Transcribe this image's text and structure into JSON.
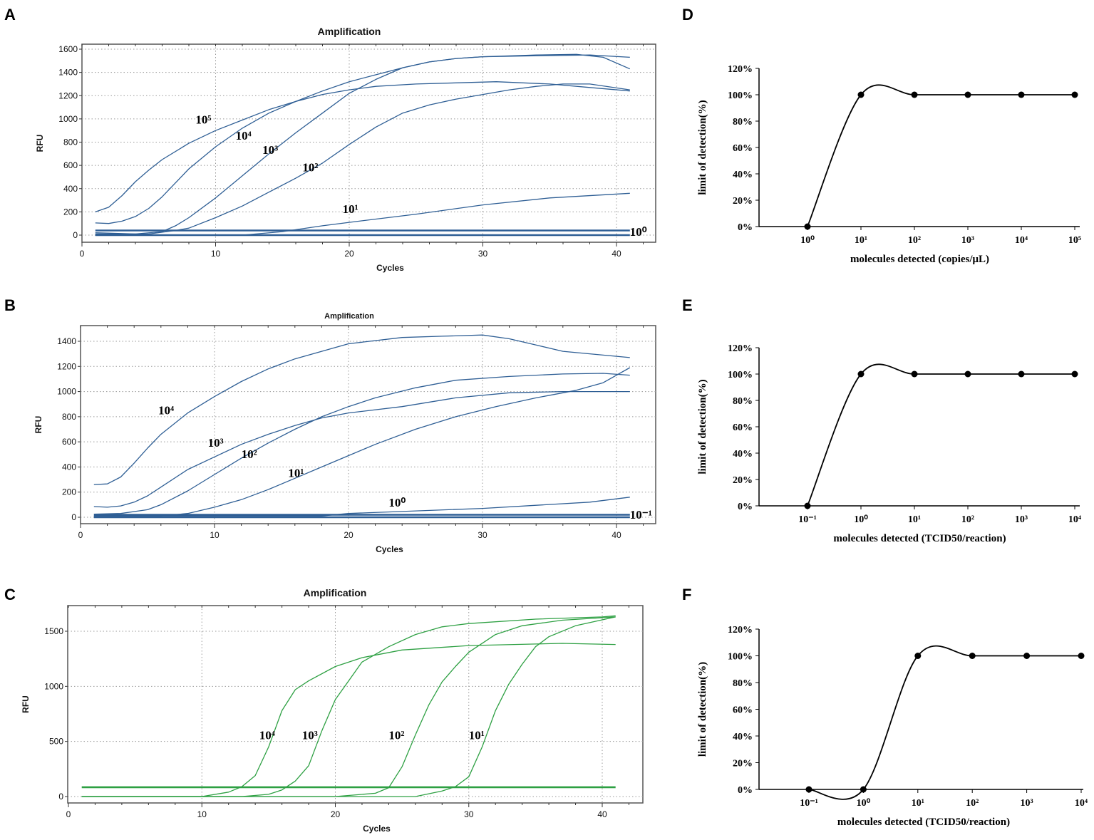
{
  "panel_letters": [
    "A",
    "B",
    "C",
    "D",
    "E",
    "F"
  ],
  "chart_data": [
    {
      "id": "A",
      "type": "line",
      "title": "Amplification",
      "xlabel": "Cycles",
      "ylabel": "RFU",
      "xlim": [
        0,
        43
      ],
      "ylim": [
        -60,
        1650
      ],
      "xticks": [
        0,
        10,
        20,
        30,
        40
      ],
      "yticks": [
        0,
        200,
        400,
        600,
        800,
        1000,
        1200,
        1400,
        1600
      ],
      "grid": true,
      "color": "#2f5f95",
      "series": [
        {
          "name": "10⁵",
          "x": [
            1,
            2,
            3,
            4,
            5,
            6,
            8,
            10,
            12,
            14,
            16,
            18,
            20,
            22,
            25,
            28,
            31,
            35,
            38,
            41
          ],
          "y": [
            200,
            240,
            340,
            460,
            560,
            650,
            790,
            900,
            990,
            1080,
            1150,
            1210,
            1250,
            1280,
            1300,
            1310,
            1320,
            1300,
            1270,
            1240
          ]
        },
        {
          "name": "10⁴",
          "x": [
            1,
            2,
            3,
            4,
            5,
            6,
            7,
            8,
            10,
            12,
            14,
            16,
            18,
            20,
            22,
            24,
            26,
            28,
            30,
            34,
            37,
            39,
            41
          ],
          "y": [
            105,
            100,
            120,
            160,
            230,
            330,
            450,
            570,
            760,
            920,
            1050,
            1150,
            1240,
            1320,
            1380,
            1440,
            1490,
            1520,
            1535,
            1550,
            1555,
            1530,
            1430
          ]
        },
        {
          "name": "10³",
          "x": [
            1,
            4,
            6,
            7,
            8,
            10,
            12,
            14,
            16,
            18,
            20,
            22,
            24,
            26,
            28,
            30,
            35,
            38,
            41
          ],
          "y": [
            20,
            10,
            30,
            80,
            150,
            320,
            510,
            700,
            880,
            1050,
            1220,
            1340,
            1440,
            1490,
            1520,
            1535,
            1545,
            1550,
            1530
          ]
        },
        {
          "name": "10²",
          "x": [
            1,
            5,
            7,
            8,
            10,
            12,
            14,
            16,
            18,
            20,
            22,
            24,
            26,
            28,
            30,
            32,
            34,
            36,
            38,
            41
          ],
          "y": [
            10,
            10,
            40,
            60,
            150,
            250,
            370,
            490,
            620,
            780,
            930,
            1050,
            1120,
            1170,
            1210,
            1250,
            1280,
            1300,
            1300,
            1250
          ]
        },
        {
          "name": "10¹",
          "x": [
            1,
            12,
            15,
            18,
            20,
            25,
            30,
            35,
            41
          ],
          "y": [
            0,
            0,
            30,
            80,
            110,
            180,
            260,
            320,
            360
          ]
        },
        {
          "name": "10⁰",
          "x": [
            1,
            41
          ],
          "y": [
            40,
            40
          ]
        },
        {
          "name": "",
          "x": [
            1,
            41
          ],
          "y": [
            0,
            0
          ]
        }
      ]
    },
    {
      "id": "B",
      "type": "line",
      "title": "Amplification",
      "xlabel": "Cycles",
      "ylabel": "RFU",
      "xlim": [
        0,
        43
      ],
      "ylim": [
        -50,
        1520
      ],
      "xticks": [
        0,
        10,
        20,
        30,
        40
      ],
      "yticks": [
        0,
        200,
        400,
        600,
        800,
        1000,
        1200,
        1400
      ],
      "grid": true,
      "color": "#2f5f95",
      "series": [
        {
          "name": "10⁴",
          "x": [
            1,
            2,
            3,
            4,
            5,
            6,
            8,
            10,
            12,
            14,
            16,
            18,
            20,
            24,
            27,
            30,
            32,
            34,
            36,
            38,
            41
          ],
          "y": [
            260,
            265,
            320,
            430,
            550,
            660,
            830,
            960,
            1080,
            1180,
            1260,
            1320,
            1380,
            1430,
            1440,
            1450,
            1420,
            1370,
            1320,
            1300,
            1270
          ]
        },
        {
          "name": "10³",
          "x": [
            1,
            2,
            3,
            4,
            5,
            6,
            8,
            10,
            12,
            14,
            16,
            18,
            20,
            24,
            28,
            32,
            36,
            41
          ],
          "y": [
            85,
            80,
            90,
            120,
            170,
            240,
            380,
            480,
            580,
            660,
            730,
            790,
            830,
            880,
            950,
            990,
            1000,
            1000
          ]
        },
        {
          "name": "10²",
          "x": [
            1,
            3,
            5,
            6,
            8,
            10,
            12,
            14,
            16,
            18,
            20,
            22,
            25,
            28,
            32,
            36,
            39,
            41
          ],
          "y": [
            25,
            30,
            60,
            100,
            210,
            340,
            470,
            590,
            700,
            800,
            880,
            950,
            1030,
            1090,
            1120,
            1140,
            1145,
            1130
          ]
        },
        {
          "name": "10¹",
          "x": [
            1,
            6,
            8,
            10,
            12,
            14,
            16,
            18,
            20,
            22,
            25,
            28,
            31,
            34,
            37,
            39,
            41
          ],
          "y": [
            10,
            10,
            30,
            80,
            140,
            220,
            310,
            400,
            490,
            580,
            700,
            800,
            880,
            950,
            1010,
            1070,
            1190
          ]
        },
        {
          "name": "10⁰",
          "x": [
            1,
            18,
            20,
            30,
            38,
            41
          ],
          "y": [
            10,
            10,
            30,
            70,
            120,
            160
          ]
        },
        {
          "name": "10⁻¹",
          "x": [
            1,
            41
          ],
          "y": [
            20,
            20
          ]
        },
        {
          "name": "",
          "x": [
            1,
            41
          ],
          "y": [
            0,
            0
          ]
        }
      ]
    },
    {
      "id": "C",
      "type": "line",
      "title": "Amplification",
      "xlabel": "Cycles",
      "ylabel": "RFU",
      "xlim": [
        0,
        43
      ],
      "ylim": [
        -60,
        1730
      ],
      "xticks": [
        0,
        10,
        20,
        30,
        40
      ],
      "yticks": [
        0,
        500,
        1000,
        1500
      ],
      "grid": true,
      "color": "#2ea043",
      "series": [
        {
          "name": "10⁴",
          "x": [
            1,
            10,
            12,
            13,
            14,
            15,
            16,
            17,
            18,
            20,
            22,
            25,
            30,
            37,
            41
          ],
          "y": [
            0,
            0,
            40,
            90,
            190,
            450,
            780,
            970,
            1050,
            1180,
            1260,
            1330,
            1370,
            1390,
            1380
          ]
        },
        {
          "name": "10³",
          "x": [
            1,
            13,
            15,
            16,
            17,
            18,
            19,
            20,
            21,
            22,
            24,
            26,
            28,
            30,
            35,
            40,
            41
          ],
          "y": [
            0,
            0,
            20,
            60,
            140,
            280,
            600,
            880,
            1050,
            1220,
            1360,
            1470,
            1540,
            1570,
            1610,
            1630,
            1640
          ]
        },
        {
          "name": "10²",
          "x": [
            1,
            20,
            23,
            24,
            25,
            26,
            27,
            28,
            29,
            30,
            32,
            34,
            37,
            41
          ],
          "y": [
            0,
            0,
            30,
            80,
            270,
            560,
            830,
            1040,
            1180,
            1310,
            1470,
            1550,
            1600,
            1630
          ]
        },
        {
          "name": "10¹",
          "x": [
            1,
            26,
            28,
            29,
            30,
            31,
            32,
            33,
            34,
            35,
            36,
            38,
            41
          ],
          "y": [
            0,
            0,
            50,
            90,
            180,
            450,
            780,
            1020,
            1200,
            1360,
            1450,
            1550,
            1630
          ]
        },
        {
          "name": "",
          "x": [
            1,
            41
          ],
          "y": [
            85,
            85
          ]
        }
      ]
    },
    {
      "id": "D",
      "type": "line",
      "xlabel": "molecules detected (copies/μL)",
      "ylabel": "limit of detection(%)",
      "categories": [
        "10⁰",
        "10¹",
        "10²",
        "10³",
        "10⁴",
        "10⁵"
      ],
      "values": [
        0,
        100,
        100,
        100,
        100,
        100
      ],
      "ylim": [
        0,
        120
      ],
      "yticks": [
        "0%",
        "20%",
        "40%",
        "60%",
        "80%",
        "100%",
        "120%"
      ],
      "grid": false
    },
    {
      "id": "E",
      "type": "line",
      "xlabel": "molecules detected (TCID50/reaction)",
      "ylabel": "limit of detection(%)",
      "categories": [
        "10⁻¹",
        "10⁰",
        "10¹",
        "10²",
        "10³",
        "10⁴"
      ],
      "values": [
        0,
        100,
        100,
        100,
        100,
        100
      ],
      "ylim": [
        0,
        120
      ],
      "yticks": [
        "0%",
        "20%",
        "40%",
        "60%",
        "80%",
        "100%",
        "120%"
      ],
      "grid": false
    },
    {
      "id": "F",
      "type": "line",
      "xlabel": "molecules detected (TCID50/reaction)",
      "ylabel": "limit of detection(%)",
      "categories": [
        "10⁻¹",
        "10⁰",
        "10¹",
        "10²",
        "10³",
        "10⁴"
      ],
      "values": [
        0,
        0,
        100,
        100,
        100,
        100
      ],
      "ylim": [
        0,
        120
      ],
      "yticks": [
        "0%",
        "20%",
        "40%",
        "60%",
        "80%",
        "100%",
        "120%"
      ],
      "grid": false
    }
  ]
}
